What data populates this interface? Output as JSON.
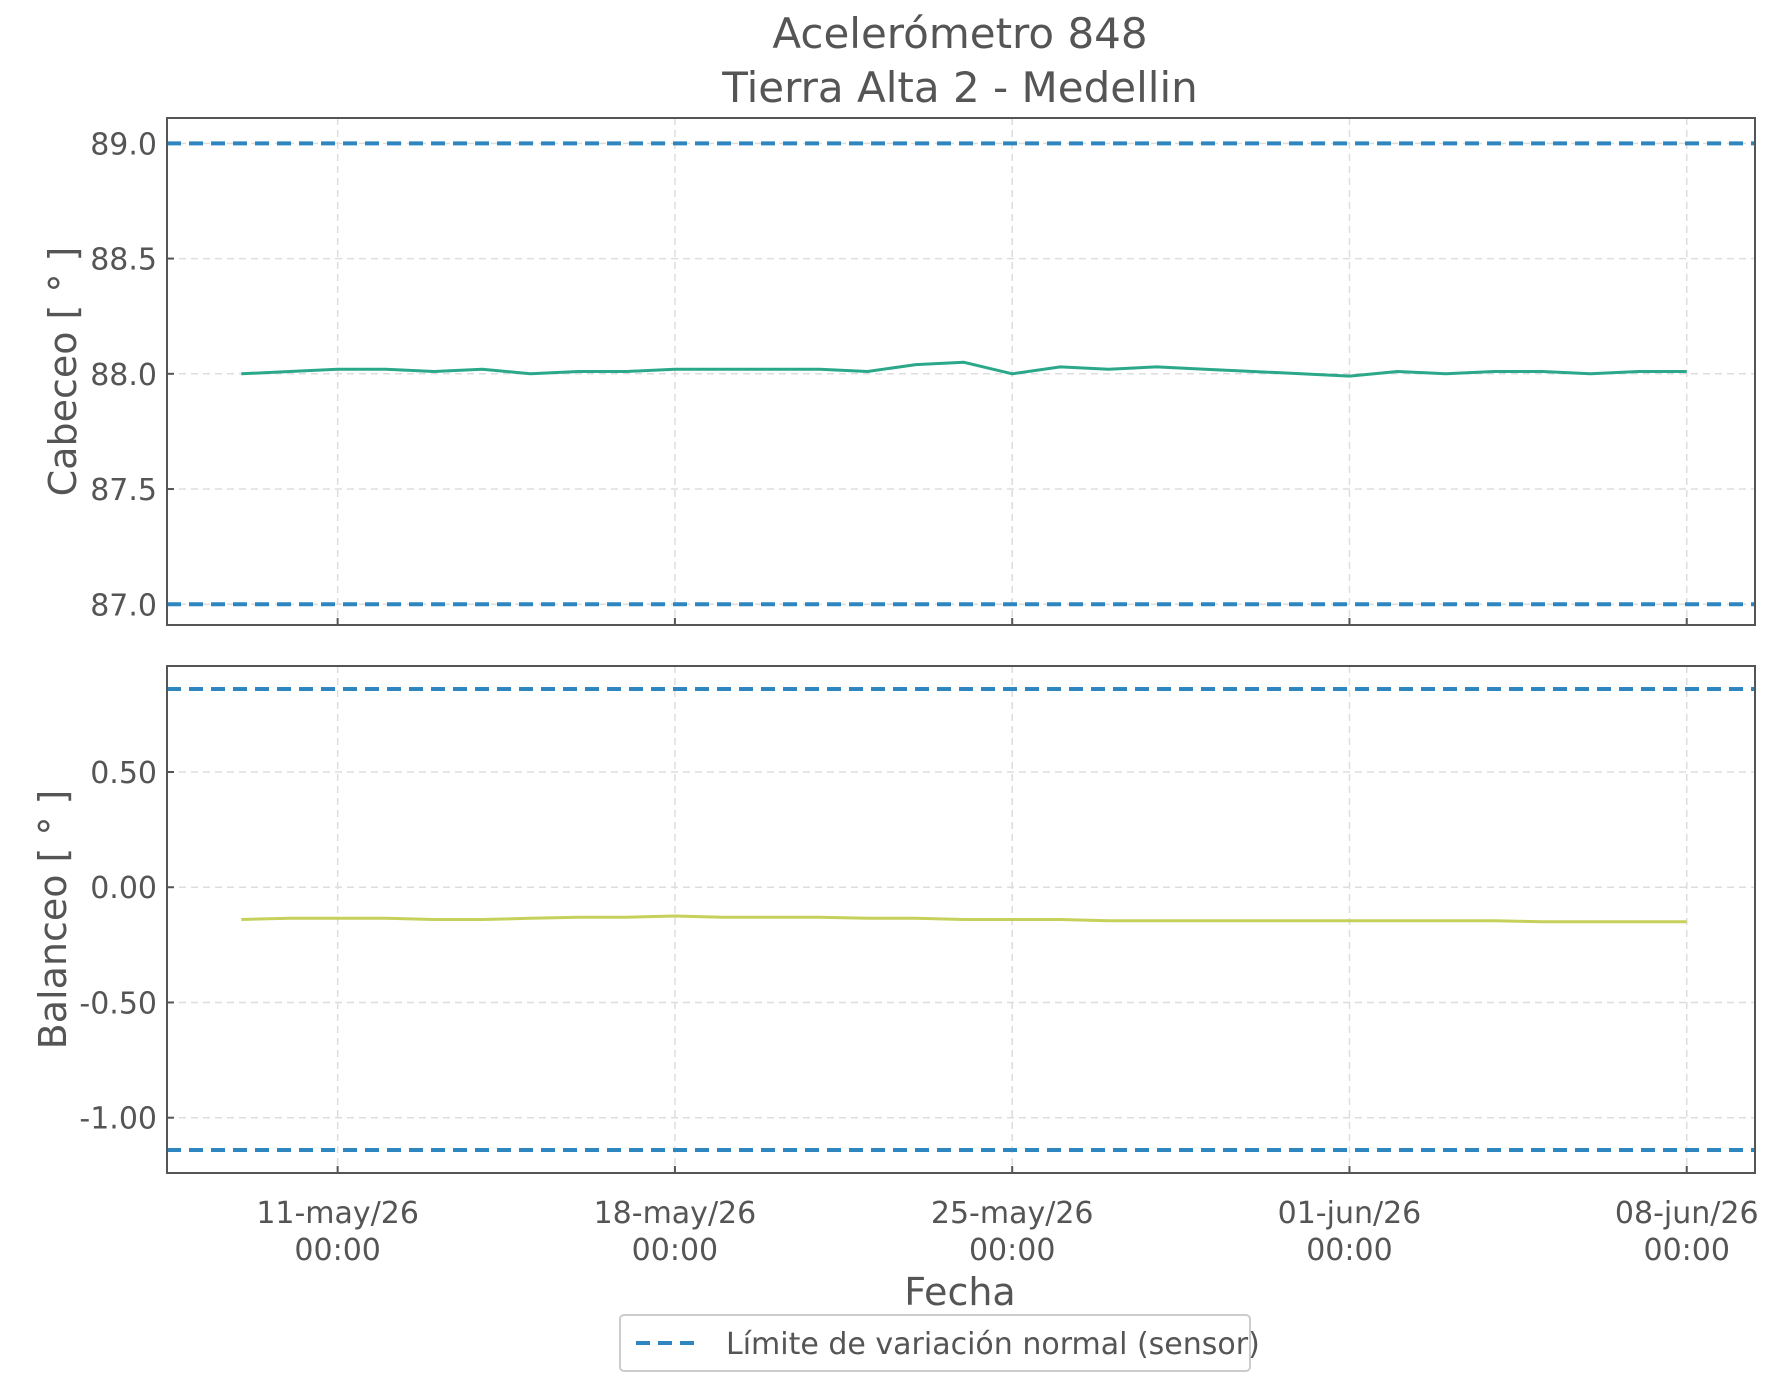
{
  "chart_data": {
    "title": "Acelerómetro 848",
    "subtitle": "Tierra Alta 2 - Medellin",
    "xlabel": "Fecha",
    "legend": {
      "label": "Límite de variación normal (sensor)",
      "placement": "bottom-center"
    },
    "grid": true,
    "x_ticks": [
      {
        "date": "2026-05-11",
        "line1": "11-may/26",
        "line2": "00:00"
      },
      {
        "date": "2026-05-18",
        "line1": "18-may/26",
        "line2": "00:00"
      },
      {
        "date": "2026-05-25",
        "line1": "25-may/26",
        "line2": "00:00"
      },
      {
        "date": "2026-06-01",
        "line1": "01-jun/26",
        "line2": "00:00"
      },
      {
        "date": "2026-06-08",
        "line1": "08-jun/26",
        "line2": "00:00"
      }
    ],
    "xlim": [
      "2026-05-07T11:00",
      "2026-06-09T10:00"
    ],
    "x": [
      "2026-05-09",
      "2026-05-10",
      "2026-05-11",
      "2026-05-12",
      "2026-05-13",
      "2026-05-14",
      "2026-05-15",
      "2026-05-16",
      "2026-05-17",
      "2026-05-18",
      "2026-05-19",
      "2026-05-20",
      "2026-05-21",
      "2026-05-22",
      "2026-05-23",
      "2026-05-24",
      "2026-05-25",
      "2026-05-26",
      "2026-05-27",
      "2026-05-28",
      "2026-05-29",
      "2026-05-30",
      "2026-05-31",
      "2026-06-01",
      "2026-06-02",
      "2026-06-03",
      "2026-06-04",
      "2026-06-05",
      "2026-06-06",
      "2026-06-07",
      "2026-06-08"
    ],
    "charts": [
      {
        "type": "line",
        "ylabel": "Cabeceo [ ° ]",
        "ylim": [
          86.91,
          89.11
        ],
        "yticks": [
          87.0,
          87.5,
          88.0,
          88.5,
          89.0
        ],
        "ytick_labels": [
          "87.0",
          "87.5",
          "88.0",
          "88.5",
          "89.0"
        ],
        "limits": [
          89.0,
          87.0
        ],
        "color": "#2aa889",
        "limit_color": "#2e86c1",
        "values": [
          88.0,
          88.01,
          88.02,
          88.02,
          88.01,
          88.02,
          88.0,
          88.01,
          88.01,
          88.02,
          88.02,
          88.02,
          88.02,
          88.01,
          88.04,
          88.05,
          88.0,
          88.03,
          88.02,
          88.03,
          88.02,
          88.01,
          88.0,
          87.99,
          88.01,
          88.0,
          88.01,
          88.01,
          88.0,
          88.01,
          88.01
        ]
      },
      {
        "type": "line",
        "ylabel": "Balanceo [ ° ]",
        "ylim": [
          -1.24,
          0.96
        ],
        "yticks": [
          -1.0,
          -0.5,
          0.0,
          0.5
        ],
        "ytick_labels": [
          "-1.00",
          "-0.50",
          "0.00",
          "0.50"
        ],
        "limits": [
          0.86,
          -1.14
        ],
        "color": "#c5d15a",
        "limit_color": "#2e86c1",
        "values": [
          -0.14,
          -0.135,
          -0.135,
          -0.135,
          -0.14,
          -0.14,
          -0.135,
          -0.13,
          -0.13,
          -0.125,
          -0.13,
          -0.13,
          -0.13,
          -0.135,
          -0.135,
          -0.14,
          -0.14,
          -0.14,
          -0.145,
          -0.145,
          -0.145,
          -0.145,
          -0.145,
          -0.145,
          -0.145,
          -0.145,
          -0.145,
          -0.15,
          -0.15,
          -0.15,
          -0.15
        ]
      }
    ]
  }
}
